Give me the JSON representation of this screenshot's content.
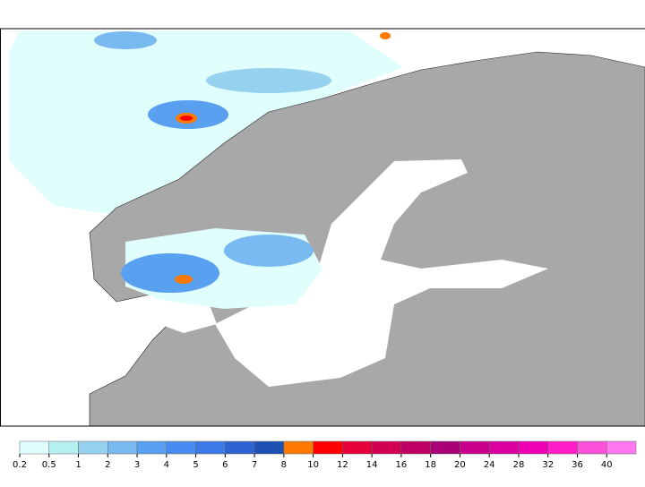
{
  "legend": {
    "ticks": [
      0.2,
      0.5,
      1,
      2,
      3,
      4,
      5,
      6,
      7,
      8,
      10,
      12,
      14,
      16,
      18,
      20,
      24,
      28,
      32,
      36,
      40
    ],
    "colors": [
      "#e0fffc",
      "#b4f0f0",
      "#96d2f0",
      "#78b9f0",
      "#5aa0f0",
      "#468cf0",
      "#3c78e6",
      "#2d64d2",
      "#1e50b4",
      "#ff7800",
      "#ff0000",
      "#e6003c",
      "#d20050",
      "#be0064",
      "#aa0078",
      "#c8008c",
      "#dc00a0",
      "#f000b4",
      "#ff1ec8",
      "#ff50dc",
      "#ff78f0"
    ]
  }
}
